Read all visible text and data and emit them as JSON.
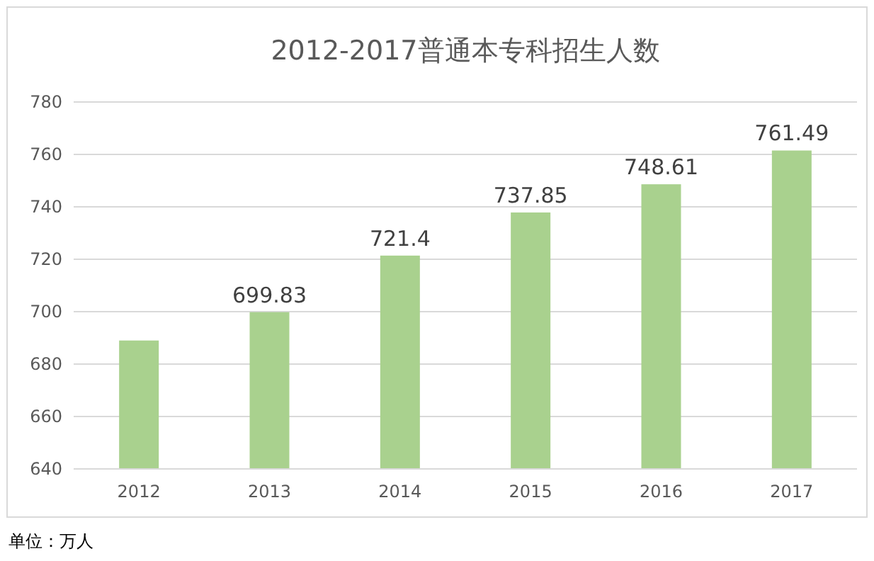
{
  "chart_data": {
    "type": "bar",
    "title": "2012-2017普通本专科招生人数",
    "categories": [
      "2012",
      "2013",
      "2014",
      "2015",
      "2016",
      "2017"
    ],
    "values": [
      689,
      699.83,
      721.4,
      737.85,
      748.61,
      761.49
    ],
    "value_labels": [
      null,
      "699.83",
      "721.4",
      "737.85",
      "748.61",
      "761.49"
    ],
    "color": "#a9d18e",
    "ylim": [
      640,
      780
    ],
    "yticks": [
      640,
      660,
      680,
      700,
      720,
      740,
      760,
      780
    ],
    "grid": "y",
    "annotations": [
      "单位：万人"
    ]
  }
}
